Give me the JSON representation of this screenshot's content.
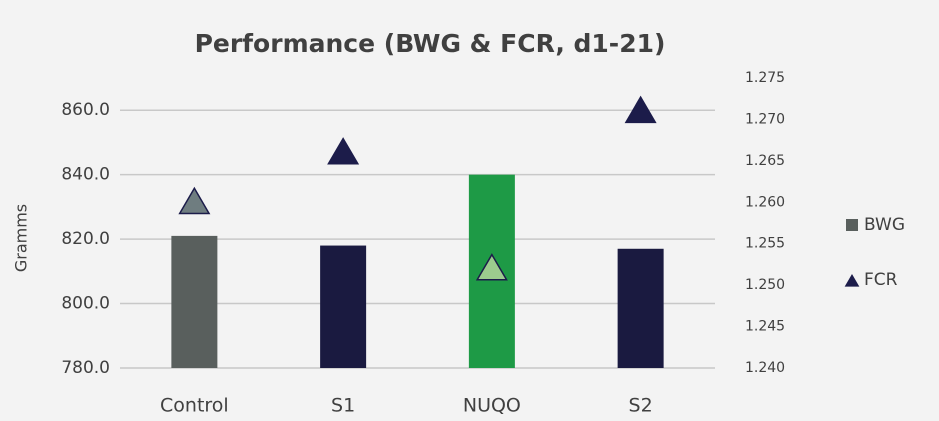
{
  "chart_data": {
    "type": "combo",
    "title": "Performance (BWG & FCR, d1-21)",
    "y_label": "Gramms",
    "categories": [
      "Control",
      "S1",
      "NUQO",
      "S2"
    ],
    "series": [
      {
        "name": "BWG",
        "type": "bar",
        "color": "#595f5d",
        "colors": [
          "#595f5d",
          "#1a1a40",
          "#1e9a46",
          "#1a1a40"
        ],
        "values": [
          821,
          818,
          840,
          817
        ]
      },
      {
        "name": "FCR",
        "type": "scatter",
        "axis": "y2",
        "color": "#1c1c4a",
        "colors": [
          "#6f7d80",
          "#1c1c4a",
          "#9ccc8e",
          "#1c1c4a"
        ],
        "values": [
          1.26,
          1.266,
          1.252,
          1.271
        ]
      }
    ],
    "ylim": [
      780,
      870
    ],
    "yticks": [
      {
        "value": 780,
        "label": "780.0"
      },
      {
        "value": 800,
        "label": "800.0"
      },
      {
        "value": 820,
        "label": "820.0"
      },
      {
        "value": 840,
        "label": "840.0"
      },
      {
        "value": 860,
        "label": "860.0"
      }
    ],
    "y2lim": [
      1.24,
      1.275
    ],
    "y2ticks": [
      {
        "value": 1.24,
        "label": "1.240"
      },
      1.245,
      {
        "value": 1.25,
        "label": "1.250"
      },
      1.255,
      {
        "value": 1.26,
        "label": "1.260"
      },
      1.265,
      {
        "value": 1.27,
        "label": "1.270"
      },
      1.275
    ],
    "grid": true,
    "legend": "right"
  }
}
